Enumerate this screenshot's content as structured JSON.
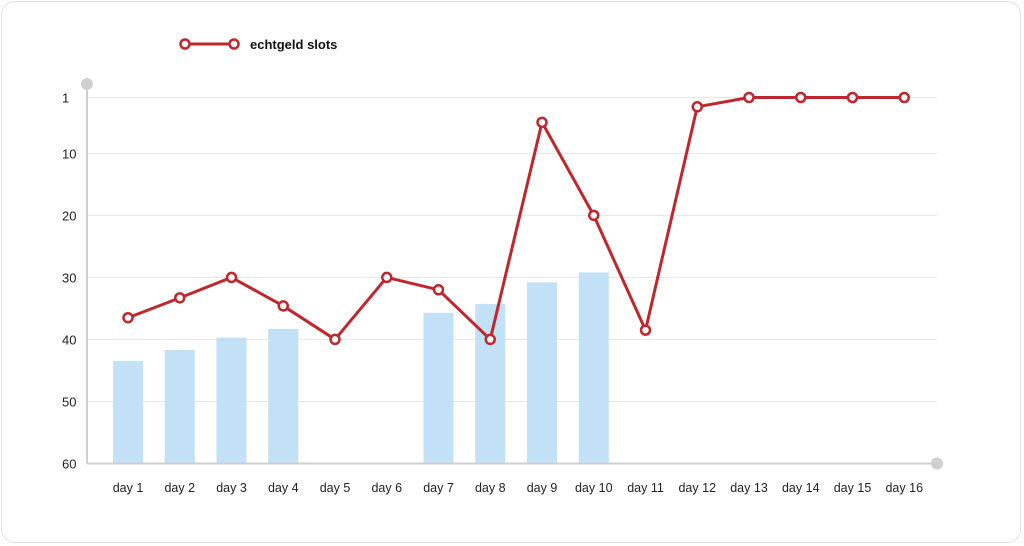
{
  "chart_data": {
    "type": "line",
    "categories": [
      "day 1",
      "day 2",
      "day 3",
      "day 4",
      "day 5",
      "day 6",
      "day 7",
      "day 8",
      "day 9",
      "day 10",
      "day 11",
      "day 12",
      "day 13",
      "day 14",
      "day 15",
      "day 16"
    ],
    "series": [
      {
        "name": "echtgeld slots",
        "type": "line",
        "values": [
          36.5,
          33.3,
          30,
          34.6,
          40,
          30,
          32,
          40,
          5,
          20,
          38.5,
          2.5,
          1,
          1,
          1,
          1
        ]
      },
      {
        "name": "",
        "type": "bar",
        "values": [
          43.5,
          41.7,
          39.7,
          38.3,
          null,
          null,
          35.7,
          34.3,
          30.8,
          29.2,
          null,
          null,
          null,
          null,
          null,
          null
        ]
      }
    ],
    "y_ticks": [
      "1",
      "10",
      "20",
      "30",
      "40",
      "50",
      "60"
    ],
    "y_tick_values": [
      1,
      10,
      20,
      30,
      40,
      50,
      60
    ],
    "ylim": [
      1,
      60
    ],
    "y_inverted": true,
    "grid": true,
    "legend_position": "top-left",
    "colors": {
      "line": "#c0272d",
      "bar": "#c2e0f6",
      "grid": "#e6e6e6",
      "axis": "#cfcfcf"
    },
    "title": "",
    "xlabel": "",
    "ylabel": ""
  }
}
